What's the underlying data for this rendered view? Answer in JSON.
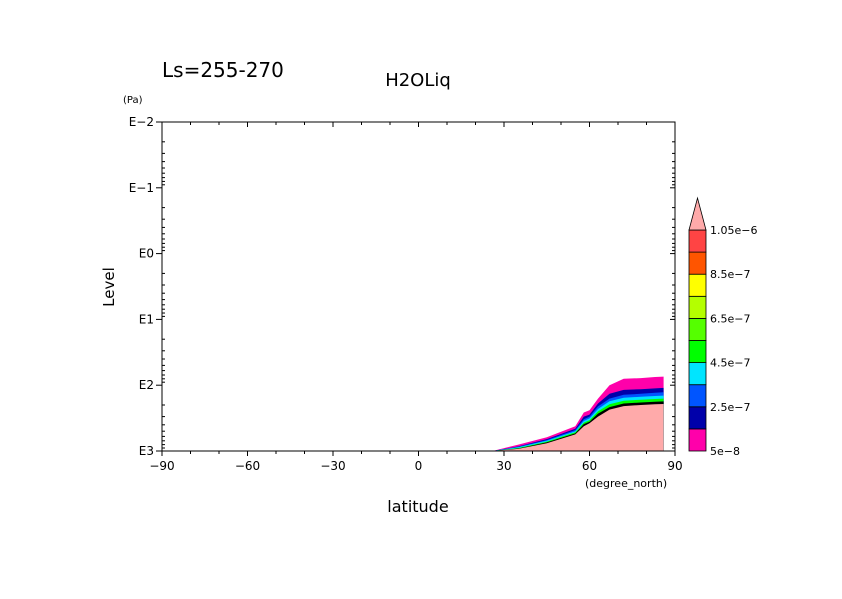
{
  "chart_data": {
    "type": "contour",
    "header_left": "Ls=255-270",
    "title": "H2OLiq",
    "xlabel": "latitude",
    "x_units": "(degree_north)",
    "ylabel": "Level",
    "y_units": "(Pa)",
    "y_scale": "log",
    "y_inverted": true,
    "xlim": [
      -90,
      90
    ],
    "ylim": [
      0.01,
      1000
    ],
    "x_ticks": [
      {
        "value": -90,
        "label": "−90"
      },
      {
        "value": -60,
        "label": "−60"
      },
      {
        "value": -30,
        "label": "−30"
      },
      {
        "value": 0,
        "label": "0"
      },
      {
        "value": 30,
        "label": "30"
      },
      {
        "value": 60,
        "label": "60"
      },
      {
        "value": 90,
        "label": "90"
      }
    ],
    "y_ticks": [
      {
        "value": 0.01,
        "label": "E−2"
      },
      {
        "value": 0.1,
        "label": "E−1"
      },
      {
        "value": 1,
        "label": "E0"
      },
      {
        "value": 10,
        "label": "E1"
      },
      {
        "value": 100,
        "label": "E2"
      },
      {
        "value": 1000,
        "label": "E3"
      }
    ],
    "colorbar": {
      "levels": [
        5e-08,
        1.5e-07,
        2.5e-07,
        3.5e-07,
        4.5e-07,
        5.5e-07,
        6.5e-07,
        7.5e-07,
        8.5e-07,
        9.5e-07,
        1.05e-06
      ],
      "colors": [
        "#ff00aa",
        "#0000aa",
        "#0055ff",
        "#00e5ff",
        "#00ff00",
        "#55ff00",
        "#b4ff00",
        "#ffff00",
        "#ff5500",
        "#ff4444",
        "#ffaaaa"
      ],
      "labels": [
        {
          "value": 5e-08,
          "text": "5e−8"
        },
        {
          "value": 2.5e-07,
          "text": "2.5e−7"
        },
        {
          "value": 4.5e-07,
          "text": "4.5e−7"
        },
        {
          "value": 6.5e-07,
          "text": "6.5e−7"
        },
        {
          "value": 8.5e-07,
          "text": "8.5e−7"
        },
        {
          "value": 1.05e-06,
          "text": "1.05e−6"
        }
      ]
    },
    "contour_envelopes": [
      {
        "bin_color": "#ff00aa",
        "lat": [
          26,
          35,
          45,
          55,
          58,
          60,
          63,
          67,
          72,
          78,
          83,
          86
        ],
        "level": [
          1000,
          800,
          620,
          420,
          260,
          240,
          160,
          100,
          80,
          78,
          75,
          74
        ]
      },
      {
        "bin_color": "#0000aa",
        "lat": [
          26,
          35,
          45,
          55,
          58,
          60,
          63,
          67,
          72,
          78,
          83,
          86
        ],
        "level": [
          1000,
          850,
          660,
          460,
          300,
          280,
          190,
          135,
          118,
          115,
          112,
          110
        ]
      },
      {
        "bin_color": "#0055ff",
        "lat": [
          26,
          35,
          45,
          55,
          58,
          60,
          63,
          67,
          72,
          78,
          83,
          86
        ],
        "level": [
          1000,
          860,
          680,
          480,
          330,
          300,
          210,
          160,
          140,
          135,
          130,
          128
        ]
      },
      {
        "bin_color": "#00e5ff",
        "lat": [
          26,
          35,
          45,
          55,
          58,
          60,
          63,
          67,
          72,
          78,
          83,
          86
        ],
        "level": [
          1000,
          880,
          700,
          500,
          350,
          320,
          230,
          175,
          155,
          150,
          146,
          144
        ]
      },
      {
        "bin_color": "#00ff00",
        "lat": [
          26,
          35,
          45,
          55,
          58,
          60,
          63,
          67,
          72,
          78,
          83,
          86
        ],
        "level": [
          1000,
          900,
          720,
          520,
          370,
          340,
          250,
          195,
          172,
          166,
          162,
          160
        ]
      },
      {
        "bin_color": "#000000",
        "lat": [
          26,
          35,
          45,
          55,
          58,
          60,
          63,
          67,
          72,
          78,
          83,
          86
        ],
        "level": [
          1000,
          915,
          740,
          540,
          390,
          360,
          270,
          215,
          190,
          183,
          178,
          176
        ]
      },
      {
        "bin_color": "#ffaaaa",
        "lat": [
          26,
          35,
          45,
          55,
          58,
          60,
          63,
          67,
          72,
          78,
          83,
          86
        ],
        "level": [
          1000,
          930,
          760,
          560,
          420,
          380,
          300,
          235,
          208,
          200,
          195,
          193
        ]
      }
    ]
  }
}
